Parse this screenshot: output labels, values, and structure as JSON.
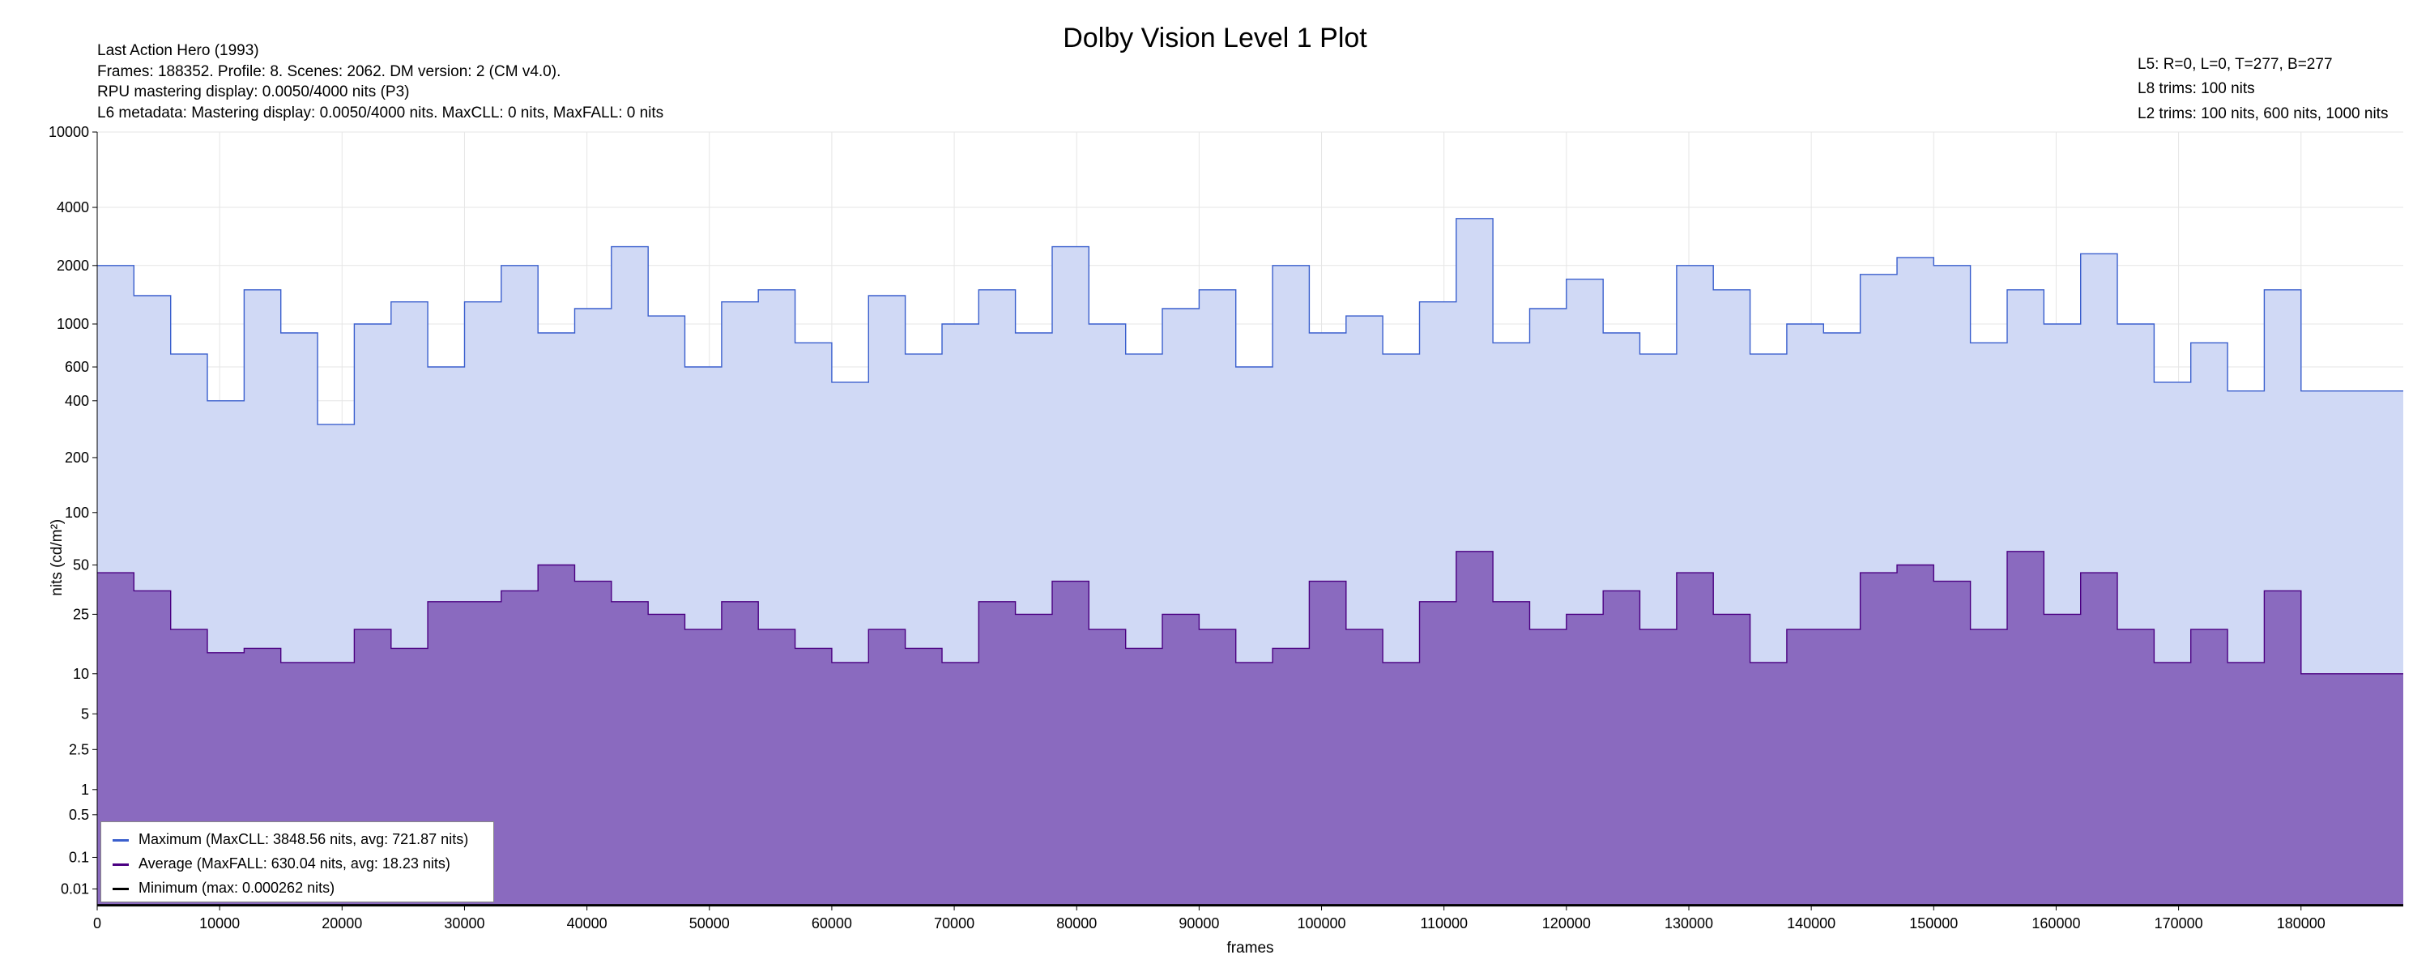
{
  "chart_data": {
    "type": "area",
    "title": "Dolby Vision Level 1 Plot",
    "info_lines": [
      "Last Action Hero (1993)",
      "Frames: 188352. Profile: 8. Scenes: 2062. DM version: 2 (CM v4.0).",
      "RPU mastering display: 0.0050/4000 nits  (P3)",
      "L6 metadata: Mastering display: 0.0050/4000 nits. MaxCLL: 0 nits, MaxFALL: 0 nits"
    ],
    "trim_lines": [
      "L5: R=0, L=0, T=277, B=277",
      "L8 trims: 100 nits",
      "L2 trims: 100 nits, 600 nits, 1000 nits"
    ],
    "xlabel": "frames",
    "ylabel": "nits (cd/m²)",
    "y_scale": "pq",
    "x_range": [
      0,
      188352
    ],
    "y_range": [
      0,
      10000
    ],
    "x_ticks": [
      "0",
      "10000",
      "20000",
      "30000",
      "40000",
      "50000",
      "60000",
      "70000",
      "80000",
      "90000",
      "100000",
      "110000",
      "120000",
      "130000",
      "140000",
      "150000",
      "160000",
      "170000",
      "180000"
    ],
    "y_ticks": [
      "0.01",
      "0.1",
      "0.5",
      "1",
      "2.5",
      "5",
      "10",
      "25",
      "50",
      "100",
      "200",
      "400",
      "600",
      "1000",
      "2000",
      "4000",
      "10000"
    ],
    "grid": true,
    "legend_position": "bottom-left",
    "series": [
      {
        "name": "Maximum (MaxCLL: 3848.56 nits, avg: 721.87 nits)",
        "color": "#3a5fcd",
        "fill": "#d0d9f5",
        "x": [
          0,
          3000,
          6000,
          9000,
          12000,
          15000,
          18000,
          21000,
          24000,
          27000,
          30000,
          33000,
          36000,
          39000,
          42000,
          45000,
          48000,
          51000,
          54000,
          57000,
          60000,
          63000,
          66000,
          69000,
          72000,
          75000,
          78000,
          81000,
          84000,
          87000,
          90000,
          93000,
          96000,
          99000,
          102000,
          105000,
          108000,
          111000,
          114000,
          117000,
          120000,
          123000,
          126000,
          129000,
          132000,
          135000,
          138000,
          141000,
          144000,
          147000,
          150000,
          153000,
          156000,
          159000,
          162000,
          165000,
          168000,
          171000,
          174000,
          177000,
          180000,
          184000,
          188352
        ],
        "values": [
          2000,
          1400,
          700,
          400,
          1500,
          900,
          300,
          1000,
          1300,
          600,
          1300,
          2000,
          900,
          1200,
          2500,
          1100,
          600,
          1300,
          1500,
          800,
          500,
          1400,
          700,
          1000,
          1500,
          900,
          2500,
          1000,
          700,
          1200,
          1500,
          600,
          2000,
          900,
          1100,
          700,
          1300,
          3500,
          800,
          1200,
          1700,
          900,
          700,
          2000,
          1500,
          700,
          1000,
          900,
          1800,
          2200,
          2000,
          800,
          1500,
          1000,
          2300,
          1000,
          500,
          800,
          450,
          1500,
          450,
          450,
          450
        ]
      },
      {
        "name": "Average (MaxFALL: 630.04 nits, avg: 18.23 nits)",
        "color": "#4b0082",
        "fill": "#8a6abf",
        "x": [
          0,
          3000,
          6000,
          9000,
          12000,
          15000,
          18000,
          21000,
          24000,
          27000,
          30000,
          33000,
          36000,
          39000,
          42000,
          45000,
          48000,
          51000,
          54000,
          57000,
          60000,
          63000,
          66000,
          69000,
          72000,
          75000,
          78000,
          81000,
          84000,
          87000,
          90000,
          93000,
          96000,
          99000,
          102000,
          105000,
          108000,
          111000,
          114000,
          117000,
          120000,
          123000,
          126000,
          129000,
          132000,
          135000,
          138000,
          141000,
          144000,
          147000,
          150000,
          153000,
          156000,
          159000,
          162000,
          165000,
          168000,
          171000,
          174000,
          177000,
          180000,
          184000,
          188352
        ],
        "values": [
          45,
          35,
          20,
          14,
          15,
          12,
          12,
          20,
          15,
          30,
          30,
          35,
          50,
          40,
          30,
          25,
          20,
          30,
          20,
          15,
          12,
          20,
          15,
          12,
          30,
          25,
          40,
          20,
          15,
          25,
          20,
          12,
          15,
          40,
          20,
          12,
          30,
          60,
          30,
          20,
          25,
          35,
          20,
          45,
          25,
          12,
          20,
          20,
          45,
          50,
          40,
          20,
          60,
          25,
          45,
          20,
          12,
          20,
          12,
          35,
          10,
          10,
          10
        ]
      },
      {
        "name": "Minimum (max: 0.000262 nits)",
        "color": "#000000",
        "x": [
          0,
          188352
        ],
        "values": [
          1e-05,
          1e-05
        ]
      }
    ]
  }
}
